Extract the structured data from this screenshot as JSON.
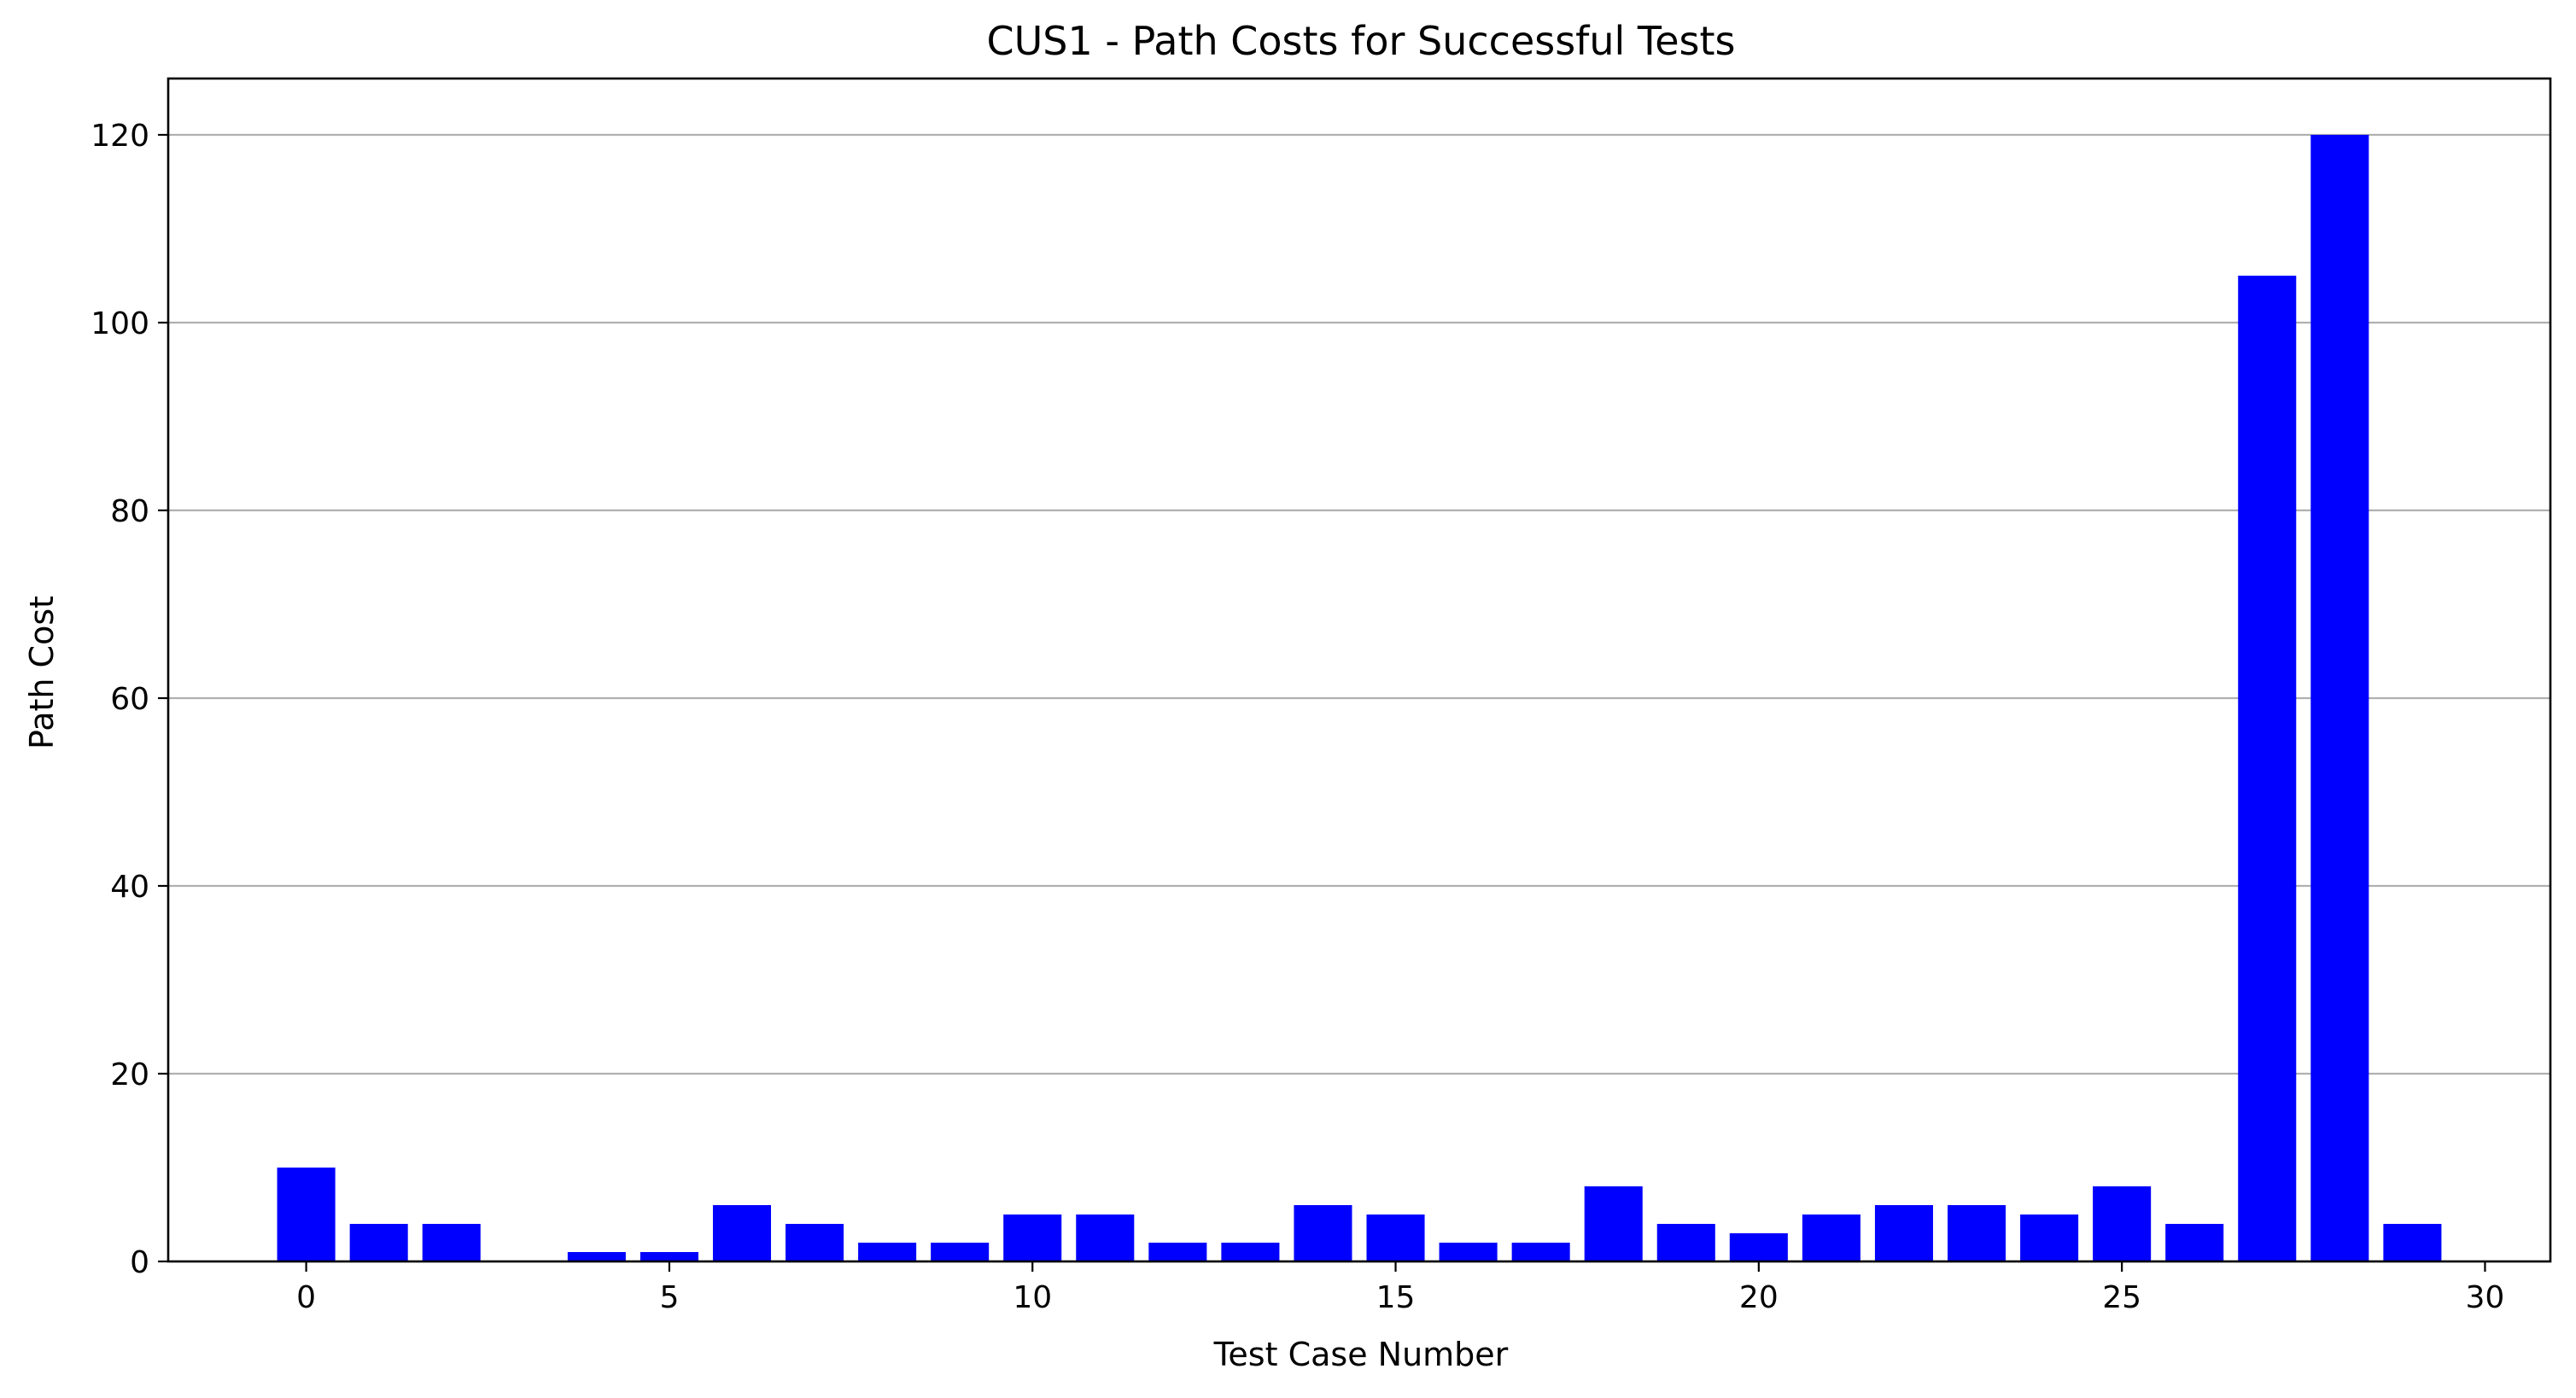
{
  "chart_data": {
    "type": "bar",
    "title": "CUS1 - Path Costs for Successful Tests",
    "xlabel": "Test Case Number",
    "ylabel": "Path Cost",
    "x": [
      0,
      1,
      2,
      3,
      4,
      5,
      6,
      7,
      8,
      9,
      10,
      11,
      12,
      13,
      14,
      15,
      16,
      17,
      18,
      19,
      20,
      21,
      22,
      23,
      24,
      25,
      26,
      27,
      28,
      29
    ],
    "values": [
      10,
      4,
      4,
      0,
      1,
      1,
      6,
      4,
      2,
      2,
      5,
      5,
      2,
      2,
      6,
      5,
      2,
      2,
      8,
      4,
      3,
      5,
      6,
      6,
      5,
      8,
      4,
      105,
      120,
      4
    ],
    "xlim": [
      -1.9,
      30.9
    ],
    "ylim": [
      0,
      126
    ],
    "xticks": [
      0,
      5,
      10,
      15,
      20,
      25,
      30
    ],
    "yticks": [
      0,
      20,
      40,
      60,
      80,
      100,
      120
    ],
    "bar_color": "#0000ff",
    "grid": "y-axis only",
    "legend": "none"
  }
}
